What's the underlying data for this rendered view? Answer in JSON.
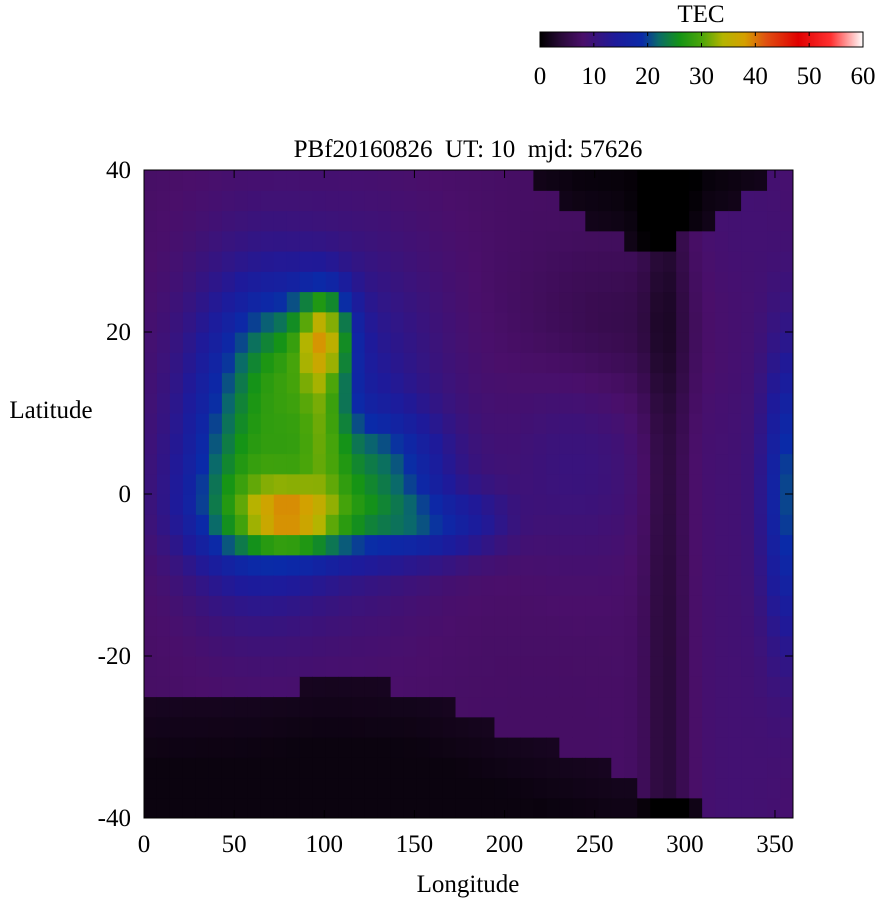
{
  "chart_data": {
    "type": "heatmap",
    "title": "PBf20160826  UT: 10  mjd: 57626",
    "xlabel": "Longitude",
    "ylabel": "Latitude",
    "xlim": [
      0,
      360
    ],
    "ylim": [
      -40,
      40
    ],
    "x_ticks": [
      0,
      50,
      100,
      150,
      200,
      250,
      300,
      350
    ],
    "y_ticks": [
      -40,
      -20,
      0,
      20,
      40
    ],
    "grid": false,
    "colorbar": {
      "label": "TEC",
      "range": [
        0,
        60
      ],
      "ticks": [
        0,
        10,
        20,
        30,
        40,
        50,
        60
      ],
      "placement": "top-right",
      "palette": [
        {
          "v": 0,
          "c": "#000000"
        },
        {
          "v": 4,
          "c": "#2a0a3a"
        },
        {
          "v": 8,
          "c": "#4a0f6a"
        },
        {
          "v": 14,
          "c": "#1e1a9a"
        },
        {
          "v": 19,
          "c": "#0a2aa8"
        },
        {
          "v": 22,
          "c": "#0a6a6a"
        },
        {
          "v": 26,
          "c": "#159415"
        },
        {
          "v": 30,
          "c": "#4aa50a"
        },
        {
          "v": 34,
          "c": "#b4b400"
        },
        {
          "v": 38,
          "c": "#d4a000"
        },
        {
          "v": 42,
          "c": "#e05010"
        },
        {
          "v": 48,
          "c": "#e00000"
        },
        {
          "v": 54,
          "c": "#ff3030"
        },
        {
          "v": 60,
          "c": "#ffffff"
        }
      ]
    },
    "grid_resolution": {
      "dlon": 7.2,
      "dlat": 2.5
    },
    "features": [
      {
        "kind": "gauss",
        "lon": 60,
        "lat": 8,
        "slon": 40,
        "slat": 19,
        "amp": 13
      },
      {
        "kind": "gauss",
        "lon": 120,
        "lat": 10,
        "slon": 50,
        "slat": 22,
        "amp": 6
      },
      {
        "kind": "gauss",
        "lon": 80,
        "lat": 16,
        "slon": 26,
        "slat": 9,
        "amp": 8
      },
      {
        "kind": "gauss",
        "lon": 100,
        "lat": 20,
        "slon": 14,
        "slat": 5.5,
        "amp": 16
      },
      {
        "kind": "gauss",
        "lon": 100,
        "lat": 10,
        "slon": 13,
        "slat": 10,
        "amp": 8
      },
      {
        "kind": "gauss",
        "lon": 80,
        "lat": -3,
        "slon": 22,
        "slat": 3.5,
        "amp": 9
      },
      {
        "kind": "gauss",
        "lon": 100,
        "lat": -3,
        "slon": 55,
        "slat": 5,
        "amp": 11
      },
      {
        "kind": "gauss",
        "lon": 160,
        "lat": -4,
        "slon": 30,
        "slat": 4,
        "amp": 6
      },
      {
        "kind": "gauss",
        "lon": 190,
        "lat": -3,
        "slon": 18,
        "slat": 4,
        "amp": 2
      },
      {
        "kind": "gauss",
        "lon": 60,
        "lat": 0,
        "slon": 40,
        "slat": 9,
        "amp": 6
      },
      {
        "kind": "gauss",
        "lon": 130,
        "lat": 4,
        "slon": 38,
        "slat": 6,
        "amp": 8
      },
      {
        "kind": "gauss",
        "lon": 358,
        "lat": 0,
        "slon": 14,
        "slat": 18,
        "amp": 12
      },
      {
        "kind": "gauss",
        "lon": 240,
        "lat": 5,
        "slon": 40,
        "slat": 14,
        "amp": 3
      }
    ],
    "dark_regions": [
      {
        "name": "southern-dark",
        "boundary_lon": [
          0,
          60,
          100,
          150,
          200,
          260,
          280,
          360
        ],
        "boundary_lat": [
          -26,
          -25,
          -23,
          -24,
          -29,
          -34,
          -38,
          -40
        ],
        "side": "below"
      },
      {
        "name": "northern-dark",
        "boundary_lon": [
          210,
          240,
          280,
          320,
          340,
          360
        ],
        "boundary_lat": [
          40,
          34,
          30,
          34,
          38,
          40
        ],
        "side": "above"
      },
      {
        "name": "meridional-dark-band",
        "lon": 290,
        "width": 12,
        "lat_min": -40,
        "lat_max": 40
      }
    ]
  }
}
